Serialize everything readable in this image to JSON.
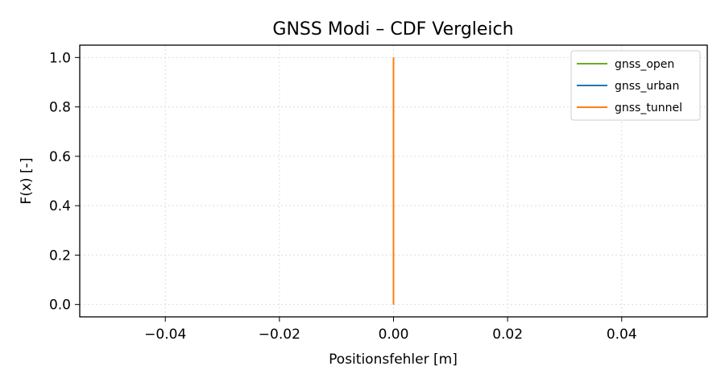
{
  "chart_data": {
    "type": "line",
    "title": "GNSS Modi – CDF Vergleich",
    "xlabel": "Positionsfehler [m]",
    "ylabel": "F(x) [-]",
    "xlim": [
      -0.055,
      0.055
    ],
    "ylim": [
      -0.05,
      1.05
    ],
    "xticks": [
      -0.04,
      -0.02,
      0.0,
      0.02,
      0.04
    ],
    "xtick_labels": [
      "−0.04",
      "−0.02",
      "0.00",
      "0.02",
      "0.04"
    ],
    "yticks": [
      0.0,
      0.2,
      0.4,
      0.6,
      0.8,
      1.0
    ],
    "ytick_labels": [
      "0.0",
      "0.2",
      "0.4",
      "0.6",
      "0.8",
      "1.0"
    ],
    "grid": true,
    "legend_position": "top-right",
    "series": [
      {
        "name": "gnss_open",
        "color": "#6aaa2a",
        "x": [
          0.0,
          0.0
        ],
        "y": [
          0.0,
          1.0
        ]
      },
      {
        "name": "gnss_urban",
        "color": "#1f77b4",
        "x": [
          0.0,
          0.0
        ],
        "y": [
          0.0,
          1.0
        ]
      },
      {
        "name": "gnss_tunnel",
        "color": "#ff7f0e",
        "x": [
          0.0,
          0.0
        ],
        "y": [
          0.0,
          1.0
        ]
      }
    ]
  }
}
